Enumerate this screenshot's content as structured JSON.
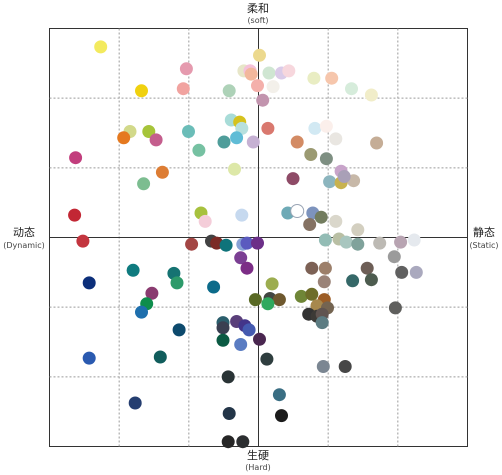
{
  "chart_data": {
    "type": "scatter",
    "title": "",
    "xlim": [
      -1,
      1
    ],
    "ylim": [
      -1,
      1
    ],
    "grid": true,
    "grid_divisions": 6,
    "axis_labels": {
      "top": {
        "main": "柔和",
        "sub": "(soft)"
      },
      "bottom": {
        "main": "生硬",
        "sub": "(Hard)"
      },
      "left": {
        "main": "动态",
        "sub": "(Dynamic)"
      },
      "right": {
        "main": "静态",
        "sub": "(Static)"
      }
    },
    "points": [
      {
        "x": -0.755,
        "y": 0.912,
        "color": "#f3ea5e"
      },
      {
        "x": 0.005,
        "y": 0.872,
        "color": "#ecd98e"
      },
      {
        "x": -0.345,
        "y": 0.807,
        "color": "#e59aae"
      },
      {
        "x": -0.07,
        "y": 0.797,
        "color": "#e7e6c8"
      },
      {
        "x": -0.04,
        "y": 0.797,
        "color": "#f1c9dd"
      },
      {
        "x": -0.04,
        "y": 0.797,
        "color": "#f3c7e0"
      },
      {
        "x": -0.04,
        "y": 0.797,
        "color": "#f4c1d9"
      },
      {
        "x": -0.035,
        "y": 0.782,
        "color": "#f2b79c"
      },
      {
        "x": 0.05,
        "y": 0.787,
        "color": "#cfe6d2"
      },
      {
        "x": 0.11,
        "y": 0.787,
        "color": "#dacbe8"
      },
      {
        "x": 0.145,
        "y": 0.797,
        "color": "#f7d7dd"
      },
      {
        "x": 0.265,
        "y": 0.762,
        "color": "#e9edc3"
      },
      {
        "x": 0.35,
        "y": 0.762,
        "color": "#f6c6ac"
      },
      {
        "x": -0.005,
        "y": 0.727,
        "color": "#f4b0ab"
      },
      {
        "x": 0.07,
        "y": 0.722,
        "color": "#f3f0ea"
      },
      {
        "x": -0.56,
        "y": 0.702,
        "color": "#f0d10f"
      },
      {
        "x": -0.36,
        "y": 0.712,
        "color": "#f1a3a0"
      },
      {
        "x": -0.14,
        "y": 0.702,
        "color": "#aed2b8"
      },
      {
        "x": 0.445,
        "y": 0.712,
        "color": "#d6ecdb"
      },
      {
        "x": 0.54,
        "y": 0.682,
        "color": "#f1edc9"
      },
      {
        "x": 0.02,
        "y": 0.657,
        "color": "#c294ae"
      },
      {
        "x": -0.13,
        "y": 0.562,
        "color": "#a8dcd8"
      },
      {
        "x": -0.09,
        "y": 0.552,
        "color": "#d6c21e"
      },
      {
        "x": -0.08,
        "y": 0.522,
        "color": "#b7e0de"
      },
      {
        "x": 0.045,
        "y": 0.522,
        "color": "#d9786e"
      },
      {
        "x": 0.27,
        "y": 0.522,
        "color": "#d2e9f3"
      },
      {
        "x": 0.325,
        "y": 0.532,
        "color": "#fbefeb"
      },
      {
        "x": -0.615,
        "y": 0.507,
        "color": "#d2d98a"
      },
      {
        "x": -0.525,
        "y": 0.507,
        "color": "#a6c43a"
      },
      {
        "x": -0.335,
        "y": 0.507,
        "color": "#6bbdb8"
      },
      {
        "x": -0.645,
        "y": 0.477,
        "color": "#e5791f"
      },
      {
        "x": -0.49,
        "y": 0.467,
        "color": "#c45e8d"
      },
      {
        "x": -0.105,
        "y": 0.477,
        "color": "#60bcd6"
      },
      {
        "x": -0.165,
        "y": 0.457,
        "color": "#4f9d9a"
      },
      {
        "x": -0.025,
        "y": 0.457,
        "color": "#c6b1d3"
      },
      {
        "x": 0.185,
        "y": 0.457,
        "color": "#d38b64"
      },
      {
        "x": 0.37,
        "y": 0.472,
        "color": "#e9e6e1"
      },
      {
        "x": 0.565,
        "y": 0.452,
        "color": "#c5ad96"
      },
      {
        "x": -0.875,
        "y": 0.382,
        "color": "#c23e7d"
      },
      {
        "x": -0.285,
        "y": 0.417,
        "color": "#76c1a2"
      },
      {
        "x": 0.25,
        "y": 0.397,
        "color": "#9b9a72"
      },
      {
        "x": 0.325,
        "y": 0.377,
        "color": "#7e8f82"
      },
      {
        "x": -0.115,
        "y": 0.327,
        "color": "#dde8a8"
      },
      {
        "x": -0.46,
        "y": 0.312,
        "color": "#dd7d34"
      },
      {
        "x": 0.395,
        "y": 0.317,
        "color": "#c8a4ca"
      },
      {
        "x": -0.55,
        "y": 0.257,
        "color": "#7cbd90"
      },
      {
        "x": 0.165,
        "y": 0.282,
        "color": "#8e4b67"
      },
      {
        "x": 0.34,
        "y": 0.267,
        "color": "#8cb5be"
      },
      {
        "x": 0.395,
        "y": 0.262,
        "color": "#c8b24f"
      },
      {
        "x": 0.455,
        "y": 0.272,
        "color": "#c7b8a8"
      },
      {
        "x": 0.41,
        "y": 0.292,
        "color": "#a9a0b7"
      },
      {
        "x": -0.275,
        "y": 0.117,
        "color": "#a7c13e"
      },
      {
        "x": -0.255,
        "y": 0.077,
        "color": "#f4cdd9"
      },
      {
        "x": -0.08,
        "y": 0.107,
        "color": "#c6d9ef"
      },
      {
        "x": 0.14,
        "y": 0.117,
        "color": "#6eaab6"
      },
      {
        "x": 0.185,
        "y": 0.127,
        "color": "#ffffff"
      },
      {
        "x": 0.26,
        "y": 0.117,
        "color": "#7d93bd"
      },
      {
        "x": 0.3,
        "y": 0.097,
        "color": "#727c5e"
      },
      {
        "x": 0.245,
        "y": 0.062,
        "color": "#857263"
      },
      {
        "x": 0.37,
        "y": 0.077,
        "color": "#dad7cb"
      },
      {
        "x": 0.475,
        "y": 0.037,
        "color": "#d3cfc0"
      },
      {
        "x": -0.88,
        "y": 0.107,
        "color": "#c22734"
      },
      {
        "x": -0.84,
        "y": -0.017,
        "color": "#c3353f"
      },
      {
        "x": -0.32,
        "y": -0.032,
        "color": "#a34644"
      },
      {
        "x": -0.225,
        "y": -0.017,
        "color": "#424243"
      },
      {
        "x": -0.2,
        "y": -0.027,
        "color": "#7c2a25"
      },
      {
        "x": -0.155,
        "y": -0.037,
        "color": "#0f737a"
      },
      {
        "x": -0.075,
        "y": -0.032,
        "color": "#88a3d6"
      },
      {
        "x": -0.055,
        "y": -0.027,
        "color": "#5b5bbf"
      },
      {
        "x": -0.005,
        "y": -0.027,
        "color": "#6c2f88"
      },
      {
        "x": 0.32,
        "y": -0.012,
        "color": "#93bcb5"
      },
      {
        "x": 0.385,
        "y": -0.007,
        "color": "#b9bfa4"
      },
      {
        "x": 0.42,
        "y": -0.022,
        "color": "#a8c6bf"
      },
      {
        "x": 0.475,
        "y": -0.032,
        "color": "#7fa29b"
      },
      {
        "x": 0.58,
        "y": -0.027,
        "color": "#bdbab4"
      },
      {
        "x": 0.68,
        "y": -0.022,
        "color": "#b8a4b2"
      },
      {
        "x": 0.745,
        "y": -0.012,
        "color": "#e5e9ee"
      },
      {
        "x": -0.085,
        "y": -0.097,
        "color": "#7b3f93"
      },
      {
        "x": 0.65,
        "y": -0.092,
        "color": "#9b9b9b"
      },
      {
        "x": -0.6,
        "y": -0.157,
        "color": "#0f7b7f"
      },
      {
        "x": -0.405,
        "y": -0.172,
        "color": "#157372"
      },
      {
        "x": -0.055,
        "y": -0.147,
        "color": "#7c2d86"
      },
      {
        "x": 0.255,
        "y": -0.147,
        "color": "#7c6155"
      },
      {
        "x": 0.32,
        "y": -0.147,
        "color": "#9c7f6a"
      },
      {
        "x": 0.52,
        "y": -0.147,
        "color": "#6d5e56"
      },
      {
        "x": 0.685,
        "y": -0.167,
        "color": "#606060"
      },
      {
        "x": 0.755,
        "y": -0.167,
        "color": "#aaa9be"
      },
      {
        "x": -0.81,
        "y": -0.217,
        "color": "#0c2f7a"
      },
      {
        "x": -0.39,
        "y": -0.217,
        "color": "#2d9a6a"
      },
      {
        "x": -0.215,
        "y": -0.237,
        "color": "#0c6b8a"
      },
      {
        "x": 0.065,
        "y": -0.222,
        "color": "#9cad4f"
      },
      {
        "x": 0.315,
        "y": -0.212,
        "color": "#9a8378"
      },
      {
        "x": 0.45,
        "y": -0.207,
        "color": "#356868"
      },
      {
        "x": 0.54,
        "y": -0.202,
        "color": "#4d5c4f"
      },
      {
        "x": -0.51,
        "y": -0.267,
        "color": "#8a3b70"
      },
      {
        "x": -0.015,
        "y": -0.297,
        "color": "#5a6a26"
      },
      {
        "x": 0.055,
        "y": -0.292,
        "color": "#414641"
      },
      {
        "x": 0.1,
        "y": -0.297,
        "color": "#6e582e"
      },
      {
        "x": 0.205,
        "y": -0.282,
        "color": "#6f8637"
      },
      {
        "x": 0.255,
        "y": -0.272,
        "color": "#6d6d29"
      },
      {
        "x": 0.315,
        "y": -0.297,
        "color": "#9c5d26"
      },
      {
        "x": -0.535,
        "y": -0.317,
        "color": "#0e8d4c"
      },
      {
        "x": 0.045,
        "y": -0.317,
        "color": "#2fa95e"
      },
      {
        "x": 0.28,
        "y": -0.327,
        "color": "#a7884d"
      },
      {
        "x": 0.33,
        "y": -0.337,
        "color": "#746451"
      },
      {
        "x": 0.655,
        "y": -0.337,
        "color": "#5f5f5d"
      },
      {
        "x": -0.56,
        "y": -0.357,
        "color": "#1e6fad"
      },
      {
        "x": 0.24,
        "y": -0.367,
        "color": "#333333"
      },
      {
        "x": 0.28,
        "y": -0.377,
        "color": "#3c3a36"
      },
      {
        "x": 0.305,
        "y": -0.367,
        "color": "#605450"
      },
      {
        "x": -0.17,
        "y": -0.407,
        "color": "#2b5e6c"
      },
      {
        "x": -0.105,
        "y": -0.402,
        "color": "#5a3f7a"
      },
      {
        "x": -0.065,
        "y": -0.422,
        "color": "#43358a"
      },
      {
        "x": -0.17,
        "y": -0.432,
        "color": "#3a3f51"
      },
      {
        "x": 0.305,
        "y": -0.407,
        "color": "#5c7c82"
      },
      {
        "x": -0.38,
        "y": -0.442,
        "color": "#0d4a6d"
      },
      {
        "x": -0.045,
        "y": -0.442,
        "color": "#455ab0"
      },
      {
        "x": -0.17,
        "y": -0.492,
        "color": "#0b5a43"
      },
      {
        "x": -0.085,
        "y": -0.512,
        "color": "#5a7cc2"
      },
      {
        "x": 0.005,
        "y": -0.487,
        "color": "#4a2750"
      },
      {
        "x": -0.81,
        "y": -0.577,
        "color": "#2a5ab0"
      },
      {
        "x": -0.47,
        "y": -0.572,
        "color": "#115d5c"
      },
      {
        "x": 0.04,
        "y": -0.582,
        "color": "#2f3e3f"
      },
      {
        "x": 0.31,
        "y": -0.617,
        "color": "#7b8692"
      },
      {
        "x": 0.415,
        "y": -0.617,
        "color": "#474747"
      },
      {
        "x": -0.145,
        "y": -0.667,
        "color": "#2a3436"
      },
      {
        "x": 0.1,
        "y": -0.752,
        "color": "#3a6e83"
      },
      {
        "x": -0.59,
        "y": -0.792,
        "color": "#253e70"
      },
      {
        "x": -0.14,
        "y": -0.842,
        "color": "#233548"
      },
      {
        "x": 0.11,
        "y": -0.852,
        "color": "#1b1b1b"
      },
      {
        "x": -0.145,
        "y": -0.977,
        "color": "#262626"
      },
      {
        "x": -0.075,
        "y": -0.977,
        "color": "#2c2e30"
      }
    ]
  }
}
